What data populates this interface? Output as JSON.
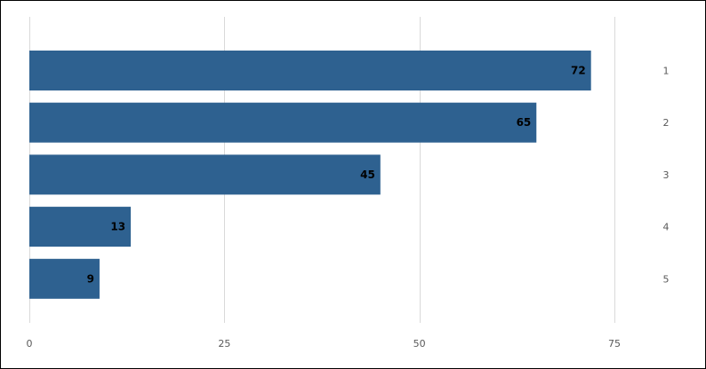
{
  "chart_data": {
    "type": "bar",
    "orientation": "horizontal",
    "categories": [
      "1",
      "2",
      "3",
      "4",
      "5"
    ],
    "values": [
      72,
      65,
      45,
      13,
      9
    ],
    "data_labels": [
      "72",
      "65",
      "45",
      "13",
      "9"
    ],
    "x_ticks": [
      0,
      25,
      50,
      75
    ],
    "x_tick_labels": [
      "0",
      "25",
      "50",
      "75"
    ],
    "xlim": [
      0,
      75
    ],
    "grid": true,
    "category_axis_position": "right",
    "legend": "none",
    "title": "",
    "xlabel": "",
    "ylabel": "",
    "colors": {
      "bar": "#2e6190",
      "grid": "#d9d9d9",
      "tick_text": "#595959",
      "label_text": "#000000"
    }
  }
}
